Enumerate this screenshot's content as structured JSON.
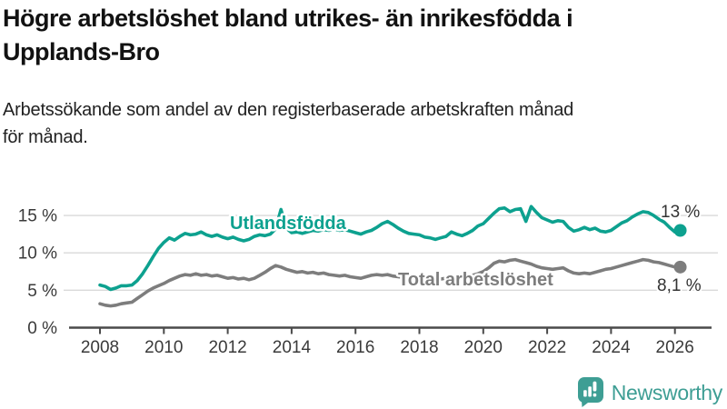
{
  "header": {
    "title": "Högre arbetslöshet bland utrikes- än inrikesfödda i\nUpplands-Bro",
    "subtitle": "Arbetssökande som andel av den registerbaserade arbetskraften månad\nför månad."
  },
  "chart_data": {
    "type": "line",
    "title": "Högre arbetslöshet bland utrikes- än inrikesfödda i Upplands-Bro",
    "subtitle": "Arbetssökande som andel av den registerbaserade arbetskraften månad för månad.",
    "x_axis": {
      "tick_years": [
        2008,
        2010,
        2012,
        2014,
        2016,
        2018,
        2020,
        2022,
        2024,
        2026
      ],
      "tick_labels": [
        "2008",
        "2010",
        "2012",
        "2014",
        "2016",
        "2018",
        "2020",
        "2022",
        "2024",
        "2026"
      ]
    },
    "y_axis": {
      "tick_values": [
        0,
        5,
        10,
        15
      ],
      "tick_labels": [
        "0 %",
        "5 %",
        "10 %",
        "15 %"
      ],
      "range": [
        0,
        17.5
      ],
      "grid": true
    },
    "legend_position": "inline-labels",
    "series": [
      {
        "name": "Utlandsfödda",
        "color": "#0da18f",
        "end_label": "13 %",
        "end_value": 13.0,
        "x_start": 2008,
        "x_step_years": 0.166667,
        "values": [
          5.7,
          5.5,
          5.1,
          5.3,
          5.6,
          5.6,
          5.7,
          6.3,
          7.2,
          8.3,
          9.5,
          10.6,
          11.4,
          12.0,
          11.7,
          12.2,
          12.6,
          12.4,
          12.5,
          12.8,
          12.4,
          12.2,
          12.4,
          12.1,
          11.9,
          12.1,
          11.8,
          11.6,
          11.8,
          12.2,
          12.4,
          12.3,
          12.5,
          13.2,
          15.8,
          13.3,
          12.7,
          12.8,
          12.6,
          12.8,
          13.0,
          12.9,
          13.1,
          13.0,
          13.2,
          13.0,
          13.1,
          12.9,
          12.7,
          12.5,
          12.8,
          13.0,
          13.4,
          13.9,
          14.2,
          13.8,
          13.3,
          12.9,
          12.6,
          12.5,
          12.4,
          12.1,
          12.0,
          11.8,
          12.0,
          12.2,
          12.8,
          12.5,
          12.3,
          12.6,
          13.0,
          13.6,
          13.9,
          14.6,
          15.3,
          15.9,
          16.0,
          15.5,
          15.8,
          15.9,
          14.2,
          16.2,
          15.4,
          14.7,
          14.4,
          14.1,
          14.3,
          14.2,
          13.4,
          12.9,
          13.1,
          13.4,
          13.1,
          13.3,
          12.9,
          12.8,
          13.0,
          13.5,
          14.0,
          14.3,
          14.8,
          15.2,
          15.5,
          15.4,
          15.0,
          14.5,
          14.1,
          13.4,
          12.8,
          13.0
        ]
      },
      {
        "name": "Total arbetslöshet",
        "color": "#7d7d7d",
        "end_label": "8,1 %",
        "end_value": 8.1,
        "x_start": 2008,
        "x_step_years": 0.166667,
        "values": [
          3.2,
          3.0,
          2.9,
          3.0,
          3.2,
          3.3,
          3.4,
          3.9,
          4.4,
          4.9,
          5.3,
          5.6,
          5.9,
          6.3,
          6.6,
          6.9,
          7.1,
          7.0,
          7.2,
          7.0,
          7.1,
          6.9,
          7.0,
          6.8,
          6.6,
          6.7,
          6.5,
          6.6,
          6.4,
          6.6,
          7.0,
          7.4,
          7.9,
          8.3,
          8.1,
          7.8,
          7.6,
          7.4,
          7.5,
          7.3,
          7.4,
          7.2,
          7.3,
          7.1,
          7.0,
          6.9,
          7.0,
          6.8,
          6.7,
          6.6,
          6.8,
          7.0,
          7.1,
          7.0,
          7.1,
          6.9,
          6.8,
          6.7,
          6.6,
          6.5,
          6.4,
          6.3,
          6.5,
          6.6,
          6.5,
          6.6,
          6.4,
          6.5,
          6.6,
          6.8,
          7.0,
          7.2,
          7.5,
          8.0,
          8.6,
          8.9,
          8.8,
          9.0,
          9.1,
          8.9,
          8.7,
          8.5,
          8.2,
          8.0,
          7.9,
          7.8,
          7.9,
          8.0,
          7.6,
          7.3,
          7.2,
          7.3,
          7.2,
          7.4,
          7.6,
          7.8,
          7.9,
          8.1,
          8.3,
          8.5,
          8.7,
          8.9,
          9.1,
          9.0,
          8.8,
          8.7,
          8.5,
          8.3,
          8.1,
          8.1
        ]
      }
    ]
  },
  "branding": {
    "logo_text": "Newsworthy",
    "logo_color": "#3e9e94",
    "logo_icon": "speech-bubble-bar-chart-icon"
  }
}
